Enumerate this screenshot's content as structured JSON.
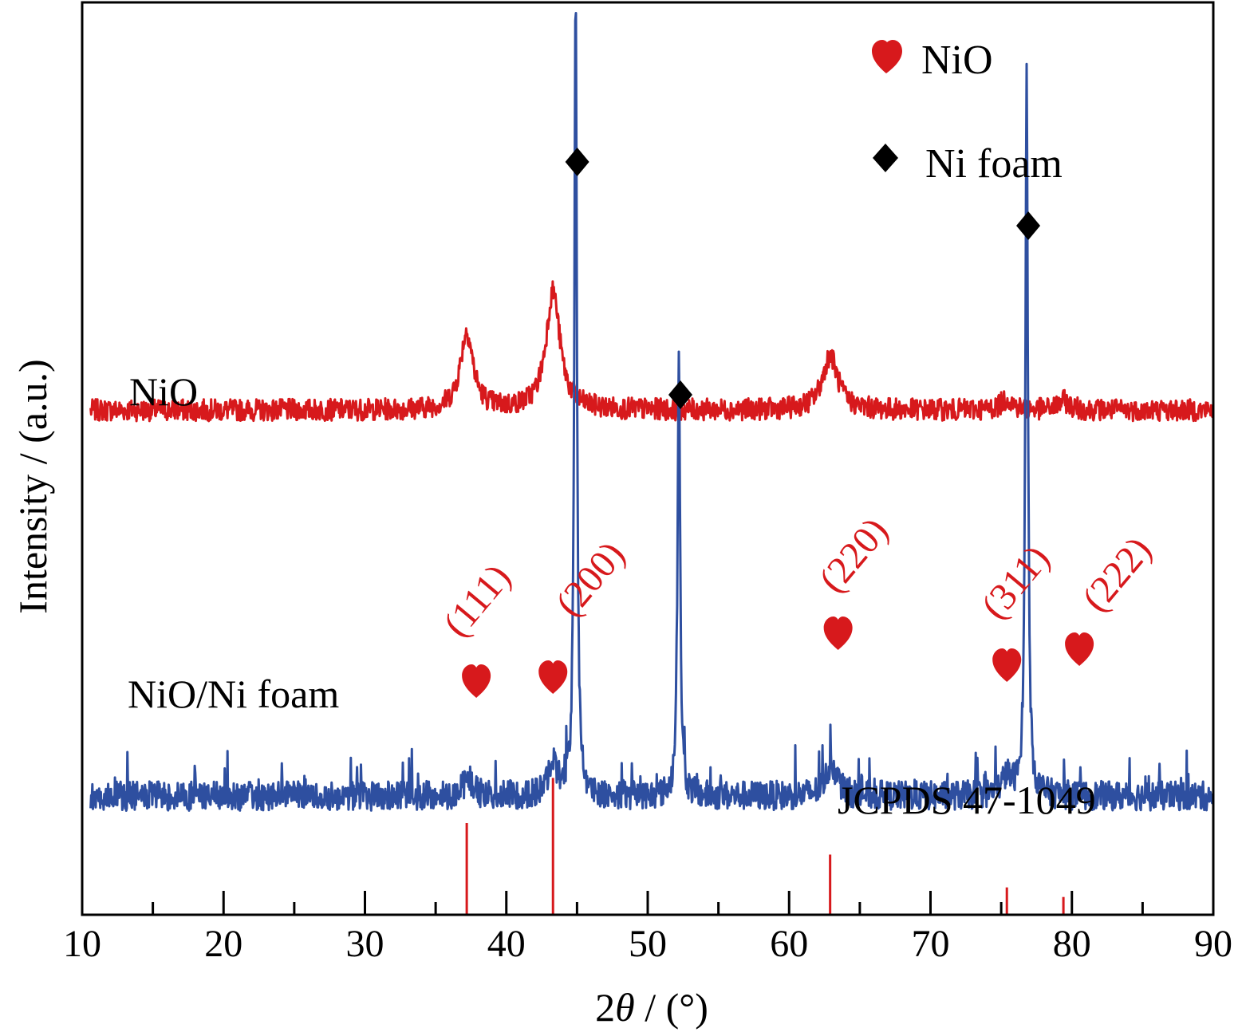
{
  "chart_data": {
    "type": "line",
    "xlabel_prefix": "2",
    "xlabel_symbol": "θ",
    "xlabel_suffix": " / (°)",
    "ylabel": "Intensity / (a.u.)",
    "xlim": [
      10,
      90
    ],
    "x_ticks": [
      10,
      20,
      30,
      40,
      50,
      60,
      70,
      80,
      90
    ],
    "x_minor_ticks": [
      15,
      25,
      35,
      45,
      55,
      65,
      75,
      85
    ],
    "grid": false,
    "legend_position": "top-right",
    "legend": [
      {
        "marker": "heart",
        "color": "#d7191c",
        "label": "NiO"
      },
      {
        "marker": "diamond",
        "color": "#000000",
        "label": "Ni foam"
      }
    ],
    "series": [
      {
        "name": "NiO",
        "color": "#d7191c",
        "baseline": 0.553,
        "noise": 0.012,
        "peaks": [
          {
            "x": 37.2,
            "height": 0.085,
            "width": 1.1
          },
          {
            "x": 43.3,
            "height": 0.13,
            "width": 1.2
          },
          {
            "x": 62.9,
            "height": 0.06,
            "width": 1.3
          },
          {
            "x": 75.4,
            "height": 0.012,
            "width": 1.0
          },
          {
            "x": 79.4,
            "height": 0.01,
            "width": 1.0
          }
        ]
      },
      {
        "name": "NiO/Ni foam",
        "color": "#2e4fa0",
        "baseline": 0.13,
        "noise": 0.016,
        "peaks": [
          {
            "x": 44.9,
            "height": 0.88,
            "width": 0.22
          },
          {
            "x": 52.2,
            "height": 0.49,
            "width": 0.22
          },
          {
            "x": 76.8,
            "height": 0.79,
            "width": 0.22
          },
          {
            "x": 37.3,
            "height": 0.02,
            "width": 0.8
          },
          {
            "x": 43.3,
            "height": 0.035,
            "width": 0.8
          },
          {
            "x": 63.0,
            "height": 0.035,
            "width": 1.0
          },
          {
            "x": 75.4,
            "height": 0.02,
            "width": 1.0
          }
        ]
      }
    ],
    "reference": {
      "label": "JCPDS 47-1049",
      "color": "#d7191c",
      "lines": [
        {
          "x": 37.2,
          "intensity": 0.67
        },
        {
          "x": 43.3,
          "intensity": 1.0
        },
        {
          "x": 62.9,
          "intensity": 0.44
        },
        {
          "x": 75.4,
          "intensity": 0.2
        },
        {
          "x": 79.4,
          "intensity": 0.13
        }
      ]
    },
    "annotations": [
      {
        "text": "NiO",
        "target": "series-label"
      },
      {
        "text": "NiO/Ni foam",
        "target": "series-label"
      },
      {
        "text": "(111)",
        "x": 37.2,
        "marker": "heart"
      },
      {
        "text": "(200)",
        "x": 43.3,
        "marker": "heart"
      },
      {
        "text": "(220)",
        "x": 62.9,
        "marker": "heart"
      },
      {
        "text": "(311)",
        "x": 75.4,
        "marker": "heart"
      },
      {
        "text": "(222)",
        "x": 79.4,
        "marker": "heart"
      },
      {
        "x": 44.9,
        "marker": "diamond"
      },
      {
        "x": 52.2,
        "marker": "diamond"
      },
      {
        "x": 76.8,
        "marker": "diamond"
      }
    ]
  }
}
